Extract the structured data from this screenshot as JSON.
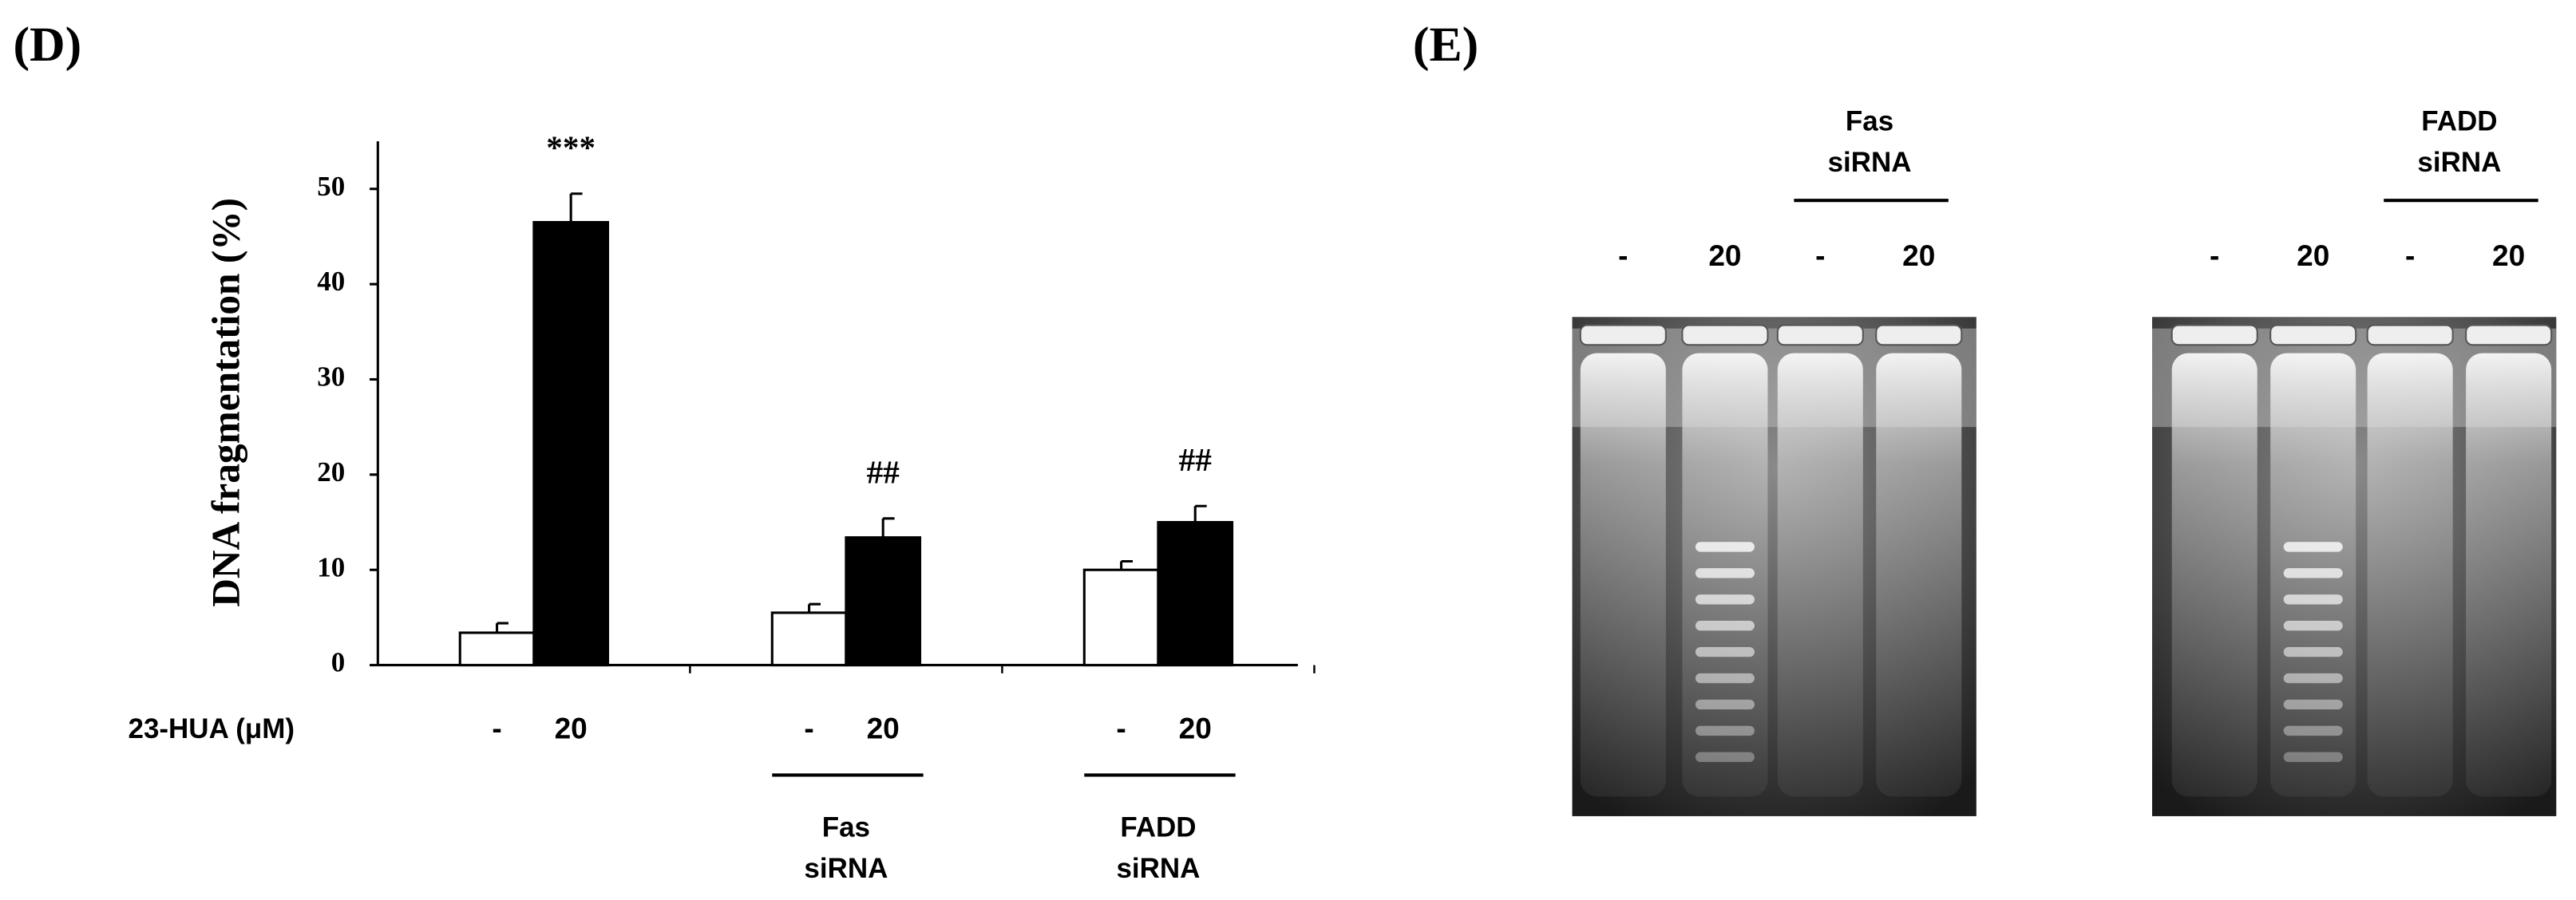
{
  "chart_data": {
    "type": "bar",
    "panel_label": "(D)",
    "ylabel": "DNA fragmentation (%)",
    "treatment_label": "23-HUA (μM)",
    "categories": [
      null,
      "Fas siRNA",
      "FADD siRNA"
    ],
    "series": [
      {
        "name": "-",
        "color": "#ffffff",
        "values": [
          3.4,
          5.5,
          10
        ],
        "errors": [
          1,
          0.9,
          0.9
        ]
      },
      {
        "name": "20",
        "color": "#000000",
        "values": [
          46.5,
          13.4,
          15
        ],
        "errors": [
          3,
          2,
          1.7
        ],
        "annotations": [
          "***",
          "##",
          "##"
        ]
      }
    ],
    "ylim": [
      0,
      55
    ],
    "yticks": [
      0,
      10,
      20,
      30,
      40,
      50
    ]
  },
  "gel": {
    "panel_label": "(E)",
    "panels": [
      {
        "group_label": "Fas siRNA",
        "lanes": [
          "-",
          "20",
          "-",
          "20"
        ]
      },
      {
        "group_label": "FADD siRNA",
        "lanes": [
          "-",
          "20",
          "-",
          "20"
        ]
      }
    ]
  }
}
